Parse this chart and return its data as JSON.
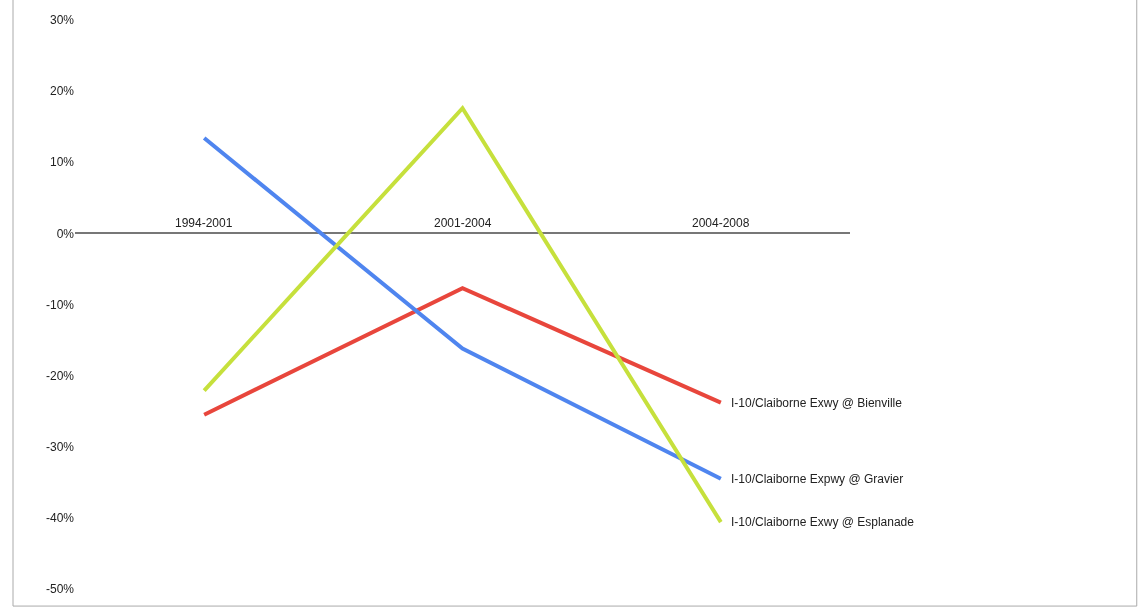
{
  "chart_data": {
    "type": "line",
    "categories": [
      "1994-2001",
      "2001-2004",
      "2004-2008"
    ],
    "series": [
      {
        "name": "I-10/Claiborne Exwy @ Bienville",
        "color": "#e8463c",
        "values": [
          -25.5,
          -7.7,
          -23.8
        ]
      },
      {
        "name": "I-10/Claiborne Expwy @ Gravier",
        "color": "#4f85ef",
        "values": [
          13.4,
          -16.2,
          -34.5
        ]
      },
      {
        "name": "I-10/Claiborne Exwy @ Esplanade",
        "color": "#c6e03c",
        "values": [
          -22.1,
          17.6,
          -40.6
        ]
      }
    ],
    "ylim": [
      -50,
      30
    ],
    "yticks": [
      {
        "value": -50,
        "label": "-50%"
      },
      {
        "value": -40,
        "label": "-40%"
      },
      {
        "value": -30,
        "label": "-30%"
      },
      {
        "value": -20,
        "label": "-20%"
      },
      {
        "value": -10,
        "label": "-10%"
      },
      {
        "value": 0,
        "label": "0%"
      },
      {
        "value": 10,
        "label": "10%"
      },
      {
        "value": 20,
        "label": "20%"
      },
      {
        "value": 30,
        "label": "30%"
      }
    ],
    "legend": false,
    "marker": "none",
    "line_style": "solid"
  }
}
